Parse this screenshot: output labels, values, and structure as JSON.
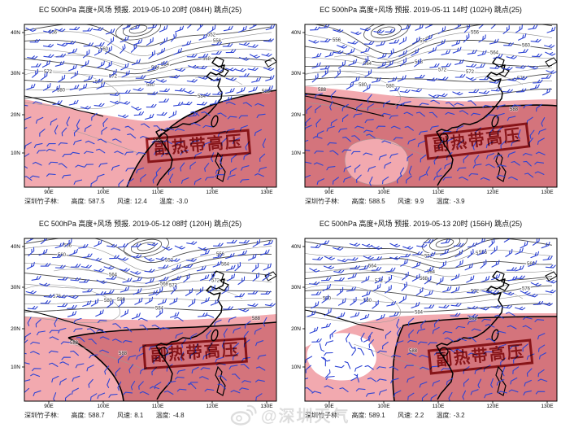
{
  "colors": {
    "pink_light": "#f2a9af",
    "pink_dark": "#d4747c",
    "stamp_red": "#9c1a20",
    "barb_blue": "#2e44d4",
    "contour_gray": "#8d8d8d",
    "contour_dark": "#4a4a4a",
    "coast": "#000000"
  },
  "axes": {
    "lat_ticks": [
      "40N",
      "30N",
      "20N",
      "10N"
    ],
    "lon_ticks": [
      "90E",
      "100E",
      "110E",
      "120E",
      "130E"
    ]
  },
  "contour_values": [
    "552",
    "556",
    "560",
    "564",
    "568",
    "572",
    "576",
    "580",
    "584"
  ],
  "high_value": "588",
  "stamp_label": "副热带高压",
  "status_labels": {
    "height": "高度:",
    "wind": "风速:",
    "temp": "温度:"
  },
  "watermark": {
    "icon": "weibo-logo",
    "text": "@深圳天气"
  },
  "panels": [
    {
      "title": "EC 500hPa 高度+风场  预报. 2019-05-10 20时 (084H) 跳点(25)",
      "status": {
        "station": "深圳竹子林:",
        "height": "587.5",
        "wind": "12.4",
        "temp": "-3.0"
      }
    },
    {
      "title": "EC 500hPa 高度+风场  预报. 2019-05-11 14时 (102H) 跳点(25)",
      "status": {
        "station": "深圳竹子林:",
        "height": "588.5",
        "wind": "9.9",
        "temp": "-3.9"
      }
    },
    {
      "title": "EC 500hPa 高度+风场  预报. 2019-05-12 08时 (120H) 跳点(25)",
      "status": {
        "station": "深圳竹子林:",
        "height": "588.7",
        "wind": "8.1",
        "temp": "-4.8"
      }
    },
    {
      "title": "EC 500hPa 高度+风场  预报. 2019-05-13 20时 (156H) 跳点(25)",
      "status": {
        "station": "深圳竹子林:",
        "height": "589.1",
        "wind": "2.2",
        "temp": "-3.2"
      }
    }
  ]
}
